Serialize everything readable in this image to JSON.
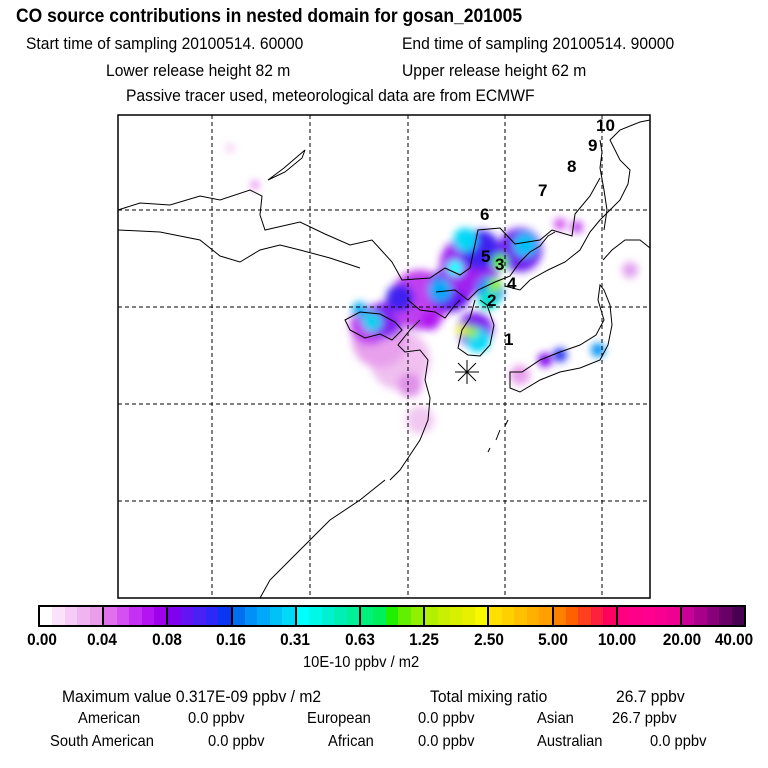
{
  "header": {
    "title": "CO  source contributions in nested domain for gosan_201005",
    "start_time": "Start time of sampling 20100514. 60000",
    "end_time": "End time of sampling 20100514. 90000",
    "lower_release": "Lower release height   82 m",
    "upper_release": "Upper release height   62 m",
    "tracer_note": "Passive tracer used, meteorological data are from ECMWF"
  },
  "map": {
    "trajectory_labels": [
      "1",
      "2",
      "3",
      "4",
      "5",
      "6",
      "7",
      "8",
      "9",
      "10"
    ],
    "receptor_marker": "asterisk-icon"
  },
  "colorbar": {
    "ticks": [
      "0.00",
      "0.04",
      "0.08",
      "0.16",
      "0.31",
      "0.63",
      "1.25",
      "2.50",
      "5.00",
      "10.00",
      "20.00",
      "40.00"
    ],
    "unit_label": "10E-10 ppbv / m2",
    "colors": [
      [
        "#ffffff",
        "#fbe2fb",
        "#f6cbf6",
        "#f0b4f0",
        "#ea9eea"
      ],
      [
        "#e070ec",
        "#d450f2",
        "#c530f4",
        "#b414f2",
        "#a000ea"
      ],
      [
        "#8000f0",
        "#6414f2",
        "#4822f4",
        "#2c28f8",
        "#0a36f2"
      ],
      [
        "#0070f0",
        "#0090f8",
        "#00a8f8",
        "#00c0f8",
        "#00d8f8"
      ],
      [
        "#00ffff",
        "#00f8e8",
        "#00f0d0",
        "#00f0b4",
        "#00f09a"
      ],
      [
        "#00f07c",
        "#00f05c",
        "#20f000",
        "#60f000",
        "#90f000"
      ],
      [
        "#b0f000",
        "#c8f000",
        "#d8f000",
        "#e8f000",
        "#f8f800"
      ],
      [
        "#ffe000",
        "#ffd000",
        "#ffc000",
        "#ffb000",
        "#ffa000"
      ],
      [
        "#ff8000",
        "#ff6000",
        "#ff4020",
        "#ff2040",
        "#ff0060"
      ],
      [
        "#ff0080",
        "#ff0088",
        "#ff0090",
        "#f80090",
        "#f00090"
      ],
      [
        "#c80098",
        "#a8008a",
        "#88007a",
        "#680068",
        "#480050"
      ]
    ]
  },
  "stats": {
    "max_label": "Maximum value  0.317E-09 ppbv / m2",
    "total_label": "Total mixing ratio",
    "total_value": "26.7 ppbv",
    "regions": [
      {
        "name": "American",
        "value": "0.0 ppbv"
      },
      {
        "name": "European",
        "value": "0.0 ppbv"
      },
      {
        "name": "Asian",
        "value": "26.7 ppbv"
      },
      {
        "name": "South American",
        "value": "0.0 ppbv"
      },
      {
        "name": "African",
        "value": "0.0 ppbv"
      },
      {
        "name": "Australian",
        "value": "0.0 ppbv"
      }
    ]
  }
}
